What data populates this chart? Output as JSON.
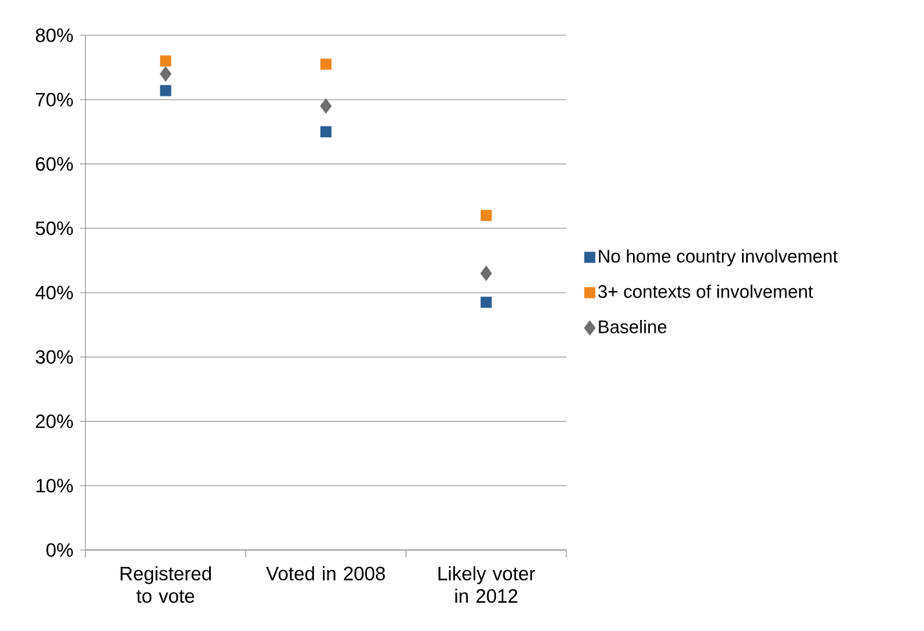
{
  "chart_data": {
    "type": "scatter",
    "categories": [
      "Registered to vote",
      "Voted in 2008",
      "Likely voter in 2012"
    ],
    "series": [
      {
        "name": "No home country involvement",
        "color": "#2a5d93",
        "marker": "square",
        "values": [
          71.4,
          65,
          38.5
        ]
      },
      {
        "name": "3+ contexts of involvement",
        "color": "#f0861b",
        "marker": "square",
        "values": [
          76,
          75.5,
          52
        ]
      },
      {
        "name": "Baseline",
        "color": "#6d6d6d",
        "marker": "diamond",
        "values": [
          74,
          69,
          43
        ]
      }
    ],
    "ylim": [
      0,
      80
    ],
    "yticks": [
      {
        "value": 0,
        "label": "0%"
      },
      {
        "value": 10,
        "label": "10%"
      },
      {
        "value": 20,
        "label": "20%"
      },
      {
        "value": 30,
        "label": "30%"
      },
      {
        "value": 40,
        "label": "40%"
      },
      {
        "value": 50,
        "label": "50%"
      },
      {
        "value": 60,
        "label": "60%"
      },
      {
        "value": 70,
        "label": "70%"
      },
      {
        "value": 80,
        "label": "80%"
      }
    ],
    "grid": "y",
    "legend": "right"
  }
}
